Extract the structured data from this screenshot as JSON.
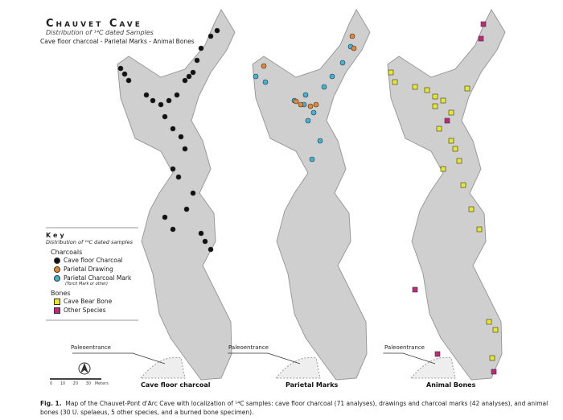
{
  "header": {
    "title": "Chauvet Cave",
    "subtitle": "Distribution of ¹⁴C dated Samples",
    "line": "Cave floor charcoal - Parietal Marks - Animal Bones"
  },
  "key": {
    "title": "Key",
    "subtitle": "Distribution of ¹⁴C dated samples",
    "groups": [
      {
        "label": "Charcoals",
        "items": [
          {
            "label": "Cave floor Charcoal",
            "color": "#111111",
            "shape": "circle"
          },
          {
            "label": "Parietal Drawing",
            "color": "#e8862a",
            "shape": "circle"
          },
          {
            "label": "Parietal Charcoal Mark",
            "note": "(Torch Mark or other)",
            "color": "#3bb6d8",
            "shape": "circle"
          }
        ]
      },
      {
        "label": "Bones",
        "items": [
          {
            "label": "Cave Bear Bone",
            "color": "#e8e82a",
            "shape": "square"
          },
          {
            "label": "Other Species",
            "color": "#c2287a",
            "shape": "square"
          }
        ]
      }
    ]
  },
  "panels": [
    {
      "label": "Cave floor charcoal",
      "entrance": "Paleoentrance"
    },
    {
      "label": "Parietal Marks",
      "entrance": "Paleoentrance"
    },
    {
      "label": "Animal Bones",
      "entrance": "Paleoentrance"
    }
  ],
  "scale": {
    "ticks": [
      "0",
      "10",
      "20",
      "30"
    ],
    "unit": "Meters"
  },
  "caption": {
    "label": "Fig. 1.",
    "text": "Map of the Chauvet-Pont d'Arc Cave with localization of ¹⁴C samples: cave floor charcoal (71 analyses), drawings and charcoal marks (42 analyses), and animal bones (30 U. spelaeus, 5 other species, and a burned bone specimen)."
  }
}
